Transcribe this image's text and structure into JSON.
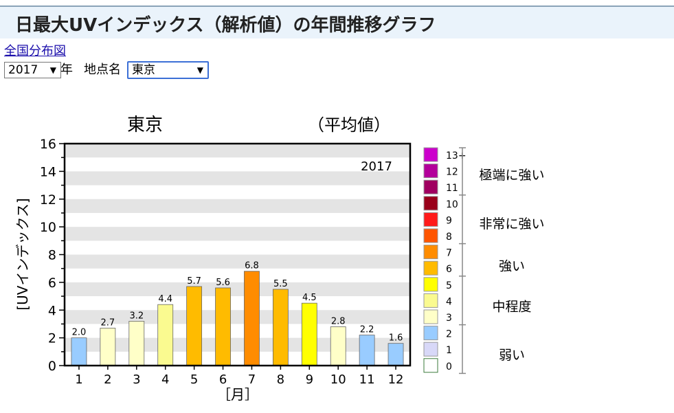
{
  "page": {
    "title": "日最大UVインデックス（解析値）の年間推移グラフ",
    "map_link": "全国分布図",
    "year_select": {
      "value": "2017",
      "suffix": "年"
    },
    "site_label": "地点名",
    "site_select": {
      "value": "東京"
    }
  },
  "chart_data": {
    "type": "bar",
    "title": "東京",
    "subtitle": "（平均値）",
    "annotation": "2017",
    "xlabel": "［月］",
    "ylabel": "[UVインデックス]",
    "ylim": [
      0,
      16
    ],
    "yticks": [
      "0",
      "2",
      "4",
      "6",
      "8",
      "10",
      "12",
      "14",
      "16"
    ],
    "categories": [
      "1",
      "2",
      "3",
      "4",
      "5",
      "6",
      "7",
      "8",
      "9",
      "10",
      "11",
      "12"
    ],
    "values": [
      2.0,
      2.7,
      3.2,
      4.4,
      5.7,
      5.6,
      6.8,
      5.5,
      4.5,
      2.8,
      2.2,
      1.6
    ],
    "value_labels": [
      "2.0",
      "2.7",
      "3.2",
      "4.4",
      "5.7",
      "5.6",
      "6.8",
      "5.5",
      "4.5",
      "2.8",
      "2.2",
      "1.6"
    ],
    "grid": true,
    "legend_placement": "right",
    "legend": {
      "levels": [
        {
          "label": "13+",
          "color": "#cc00cc"
        },
        {
          "label": "12",
          "color": "#b3009a"
        },
        {
          "label": "11",
          "color": "#a00060"
        },
        {
          "label": "10",
          "color": "#99001a"
        },
        {
          "label": "9",
          "color": "#ff1a1a"
        },
        {
          "label": "8",
          "color": "#ff5500"
        },
        {
          "label": "7",
          "color": "#ff8c00"
        },
        {
          "label": "6",
          "color": "#ffbb00"
        },
        {
          "label": "5",
          "color": "#ffff00"
        },
        {
          "label": "4",
          "color": "#fafa90"
        },
        {
          "label": "3",
          "color": "#ffffc8"
        },
        {
          "label": "2",
          "color": "#99ccff"
        },
        {
          "label": "1",
          "color": "#d8d8f8"
        },
        {
          "label": "0",
          "color": "#ffffff"
        }
      ],
      "categories": [
        "極端に強い",
        "非常に強い",
        "強い",
        "中程度",
        "弱い"
      ]
    }
  }
}
